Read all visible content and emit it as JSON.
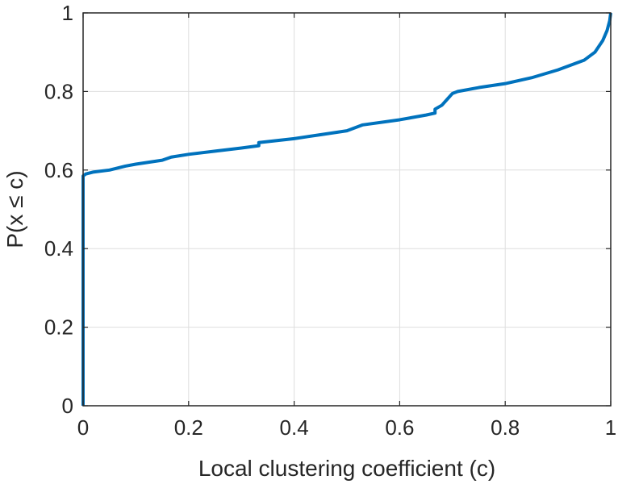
{
  "chart_data": {
    "type": "line",
    "title": "",
    "xlabel": "Local clustering coefficient (c)",
    "ylabel": "P(x ≤ c)",
    "xlim": [
      0,
      1
    ],
    "ylim": [
      0,
      1
    ],
    "xticks": [
      0,
      0.2,
      0.4,
      0.6,
      0.8,
      1
    ],
    "yticks": [
      0,
      0.2,
      0.4,
      0.6,
      0.8,
      1
    ],
    "xtick_labels": [
      "0",
      "0.2",
      "0.4",
      "0.6",
      "0.8",
      "1"
    ],
    "ytick_labels": [
      "0",
      "0.2",
      "0.4",
      "0.6",
      "0.8",
      "1"
    ],
    "grid": true,
    "box": true,
    "series": [
      {
        "color": "#0072bd",
        "x": [
          0,
          0,
          0.005,
          0.02,
          0.05,
          0.08,
          0.1,
          0.15,
          0.167,
          0.2,
          0.25,
          0.3,
          0.333,
          0.333,
          0.4,
          0.45,
          0.5,
          0.53,
          0.6,
          0.65,
          0.667,
          0.667,
          0.68,
          0.69,
          0.7,
          0.71,
          0.75,
          0.8,
          0.85,
          0.9,
          0.95,
          0.97,
          0.985,
          0.993,
          0.998,
          1.0
        ],
        "y": [
          0,
          0.585,
          0.59,
          0.595,
          0.6,
          0.61,
          0.615,
          0.625,
          0.633,
          0.64,
          0.648,
          0.656,
          0.662,
          0.67,
          0.68,
          0.69,
          0.7,
          0.715,
          0.728,
          0.74,
          0.745,
          0.755,
          0.765,
          0.78,
          0.795,
          0.8,
          0.81,
          0.82,
          0.835,
          0.855,
          0.88,
          0.9,
          0.93,
          0.955,
          0.98,
          1.0
        ]
      }
    ]
  }
}
